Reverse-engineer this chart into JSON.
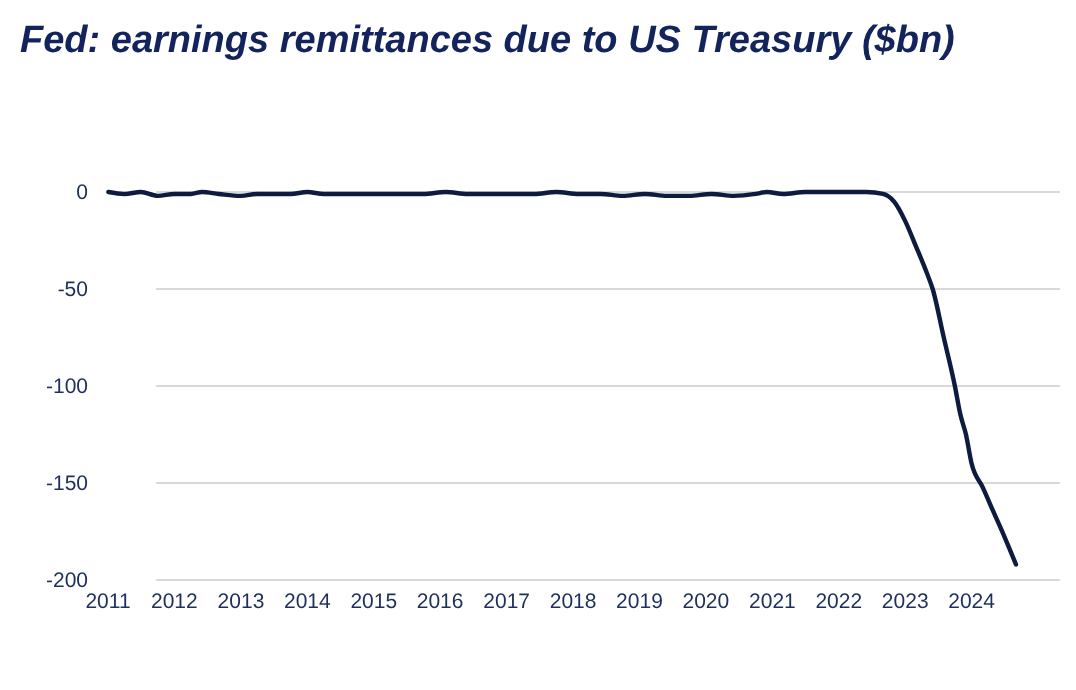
{
  "chart_data": {
    "type": "line",
    "title": "Fed: earnings remittances due to US Treasury ($bn)",
    "x": [
      "2011-01-03",
      "2011-04",
      "2011-07",
      "2011-10",
      "2012-01",
      "2012-04",
      "2012-06",
      "2012-09",
      "2013-01",
      "2013-04",
      "2013-07",
      "2013-10",
      "2014-01",
      "2014-04",
      "2014-07",
      "2014-10",
      "2015-01",
      "2015-06",
      "2015-10",
      "2016-02",
      "2016-06",
      "2016-10",
      "2017-02",
      "2017-06",
      "2017-10",
      "2018-02",
      "2018-06",
      "2018-10",
      "2019-02",
      "2019-06",
      "2019-10",
      "2020-02",
      "2020-06",
      "2020-10",
      "2020-12",
      "2021-03",
      "2021-07",
      "2021-10",
      "2022-02",
      "2022-06",
      "2022-09",
      "2022-11",
      "2023-01",
      "2023-03",
      "2023-05",
      "2023-06",
      "2023-08",
      "2023-10",
      "2023-11",
      "2023-12",
      "2024-01",
      "2024-03",
      "2024-05",
      "2024-07",
      "2024-09"
    ],
    "series": [
      {
        "color": "#0d1b3e",
        "values": [
          0,
          -1,
          0,
          -2,
          -1,
          -1,
          0,
          -1,
          -2,
          -1,
          -1,
          -1,
          0,
          -1,
          -1,
          -1,
          -1,
          -1,
          -1,
          0,
          -1,
          -1,
          -1,
          -1,
          0,
          -1,
          -1,
          -2,
          -1,
          -2,
          -2,
          -1,
          -2,
          -1,
          0,
          -1,
          0,
          0,
          0,
          0,
          -1,
          -5,
          -15,
          -28,
          -42,
          -50,
          -75,
          -100,
          -115,
          -125,
          -140,
          -152,
          -165,
          -178,
          -192
        ]
      }
    ],
    "xlim": [
      "2011-01-01",
      "2025-05-01"
    ],
    "xticks": [
      {
        "value": "2011-01-01",
        "label": "2011"
      },
      {
        "value": "2012-01-01",
        "label": "2012"
      },
      {
        "value": "2013-01-01",
        "label": "2013"
      },
      {
        "value": "2014-01-01",
        "label": "2014"
      },
      {
        "value": "2015-01-01",
        "label": "2015"
      },
      {
        "value": "2016-01-01",
        "label": "2016"
      },
      {
        "value": "2017-01-01",
        "label": "2017"
      },
      {
        "value": "2018-01-01",
        "label": "2018"
      },
      {
        "value": "2019-01-01",
        "label": "2019"
      },
      {
        "value": "2020-01-01",
        "label": "2020"
      },
      {
        "value": "2021-01-01",
        "label": "2021"
      },
      {
        "value": "2022-01-01",
        "label": "2022"
      },
      {
        "value": "2023-01-01",
        "label": "2023"
      },
      {
        "value": "2024-01-01",
        "label": "2024"
      }
    ],
    "ylim": [
      -200,
      0
    ],
    "yticks": [
      0,
      -50,
      -100,
      -150,
      -200
    ],
    "grid": "y"
  }
}
